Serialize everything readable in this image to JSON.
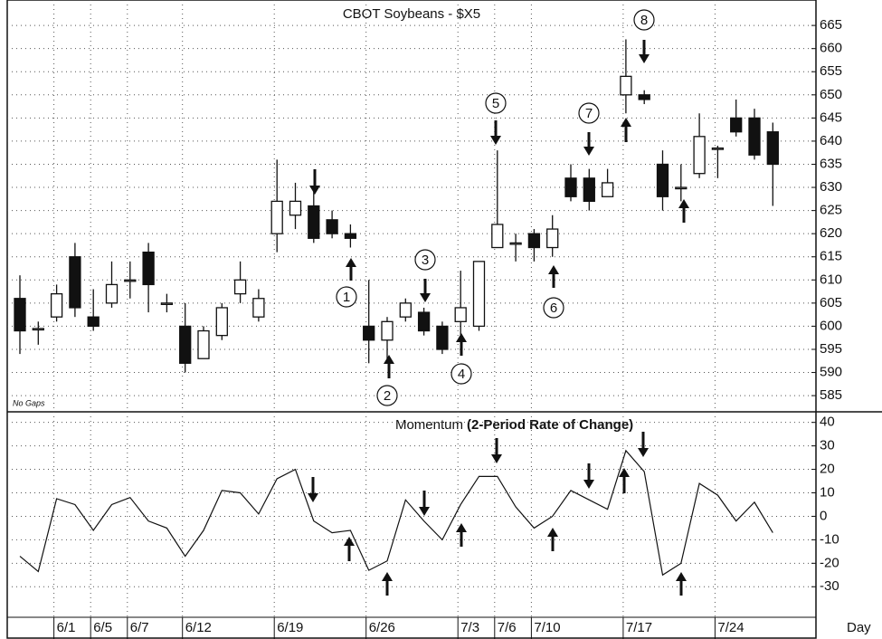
{
  "chart_data": [
    {
      "type": "candlestick",
      "title": "CBOT Soybeans - $X5",
      "note": "No Gaps",
      "open": [
        606,
        599.5,
        602,
        615,
        602,
        605,
        610,
        616,
        605,
        600,
        593,
        598,
        607,
        602,
        620,
        624,
        626,
        623,
        620,
        600,
        597,
        602,
        603,
        600,
        601,
        600,
        617,
        618,
        620,
        617,
        632,
        632,
        628,
        650,
        650,
        635,
        630,
        633,
        638.5,
        645,
        645,
        642
      ],
      "high": [
        611,
        601,
        609,
        618,
        608,
        614,
        614,
        618,
        607,
        605,
        600,
        605,
        614,
        608,
        636,
        631,
        630,
        625,
        622,
        610,
        602,
        606,
        604,
        601,
        612,
        614,
        638,
        620,
        621,
        624,
        635,
        634,
        634,
        662,
        651,
        638,
        635,
        646,
        639,
        649,
        647,
        644
      ],
      "low": [
        594,
        596,
        601,
        602,
        599,
        604,
        606,
        603,
        603,
        590,
        593,
        597,
        605,
        601,
        616,
        621,
        618,
        619,
        617,
        592,
        592,
        601,
        598,
        594,
        597,
        599,
        617,
        614,
        614,
        615,
        627,
        625,
        628,
        646,
        648,
        625,
        627,
        632,
        632,
        641,
        636,
        626
      ],
      "close": [
        599,
        599.5,
        607,
        604,
        600,
        609,
        610,
        609,
        605,
        592,
        599,
        604,
        610,
        606,
        627,
        627,
        619,
        620,
        619,
        597,
        601,
        605,
        599,
        595,
        604,
        614,
        622,
        618,
        617,
        621,
        628,
        627,
        631,
        654,
        649,
        628,
        630,
        641,
        638.5,
        642,
        637,
        635
      ],
      "ylim": [
        581.5,
        670.5
      ],
      "yticks": [
        585,
        590,
        595,
        600,
        605,
        610,
        615,
        620,
        625,
        630,
        635,
        640,
        645,
        650,
        655,
        660,
        665
      ],
      "grid": true,
      "annotations": [
        "1",
        "2",
        "3",
        "4",
        "5",
        "6",
        "7",
        "8"
      ]
    },
    {
      "type": "line",
      "title": "Momentum",
      "subtitle": "(2-Period Rate of Change)",
      "x_label": "Day",
      "categories": [
        null,
        null,
        "6/1",
        null,
        "6/5",
        null,
        "6/7",
        null,
        null,
        "6/12",
        null,
        null,
        null,
        null,
        "6/19",
        null,
        null,
        null,
        null,
        "6/26",
        null,
        null,
        null,
        null,
        "7/3",
        null,
        "7/6",
        null,
        "7/10",
        null,
        null,
        null,
        null,
        "7/17",
        null,
        null,
        null,
        null,
        "7/24",
        null,
        null,
        null
      ],
      "values": [
        -17,
        -23.5,
        7.5,
        5,
        -6,
        5,
        8,
        -2,
        -5,
        -17,
        -6,
        11,
        10,
        1,
        16,
        20,
        -2,
        -7,
        -6,
        -23,
        -19,
        7,
        -2,
        -10,
        5,
        17,
        17,
        4,
        -5,
        0,
        11,
        7,
        3,
        28,
        19,
        -25,
        -20,
        14,
        9,
        -2,
        6,
        -7
      ],
      "color": "#111",
      "ylim": [
        -43,
        44.5
      ],
      "yticks": [
        -30,
        -20,
        -10,
        0,
        10,
        20,
        30,
        40
      ],
      "grid": true
    }
  ]
}
